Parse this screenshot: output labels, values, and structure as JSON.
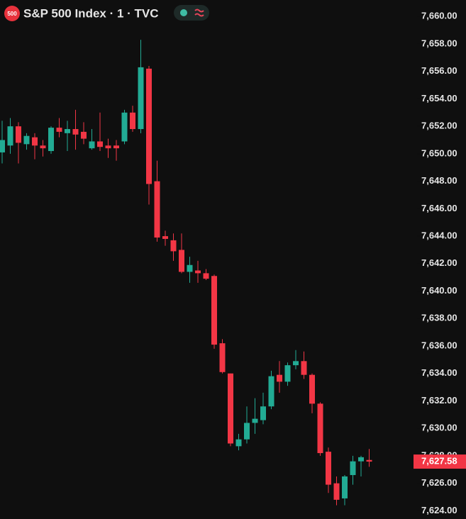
{
  "chart_data": {
    "type": "candlestick",
    "symbol_icon": "500",
    "title": "S&P 500 Index · 1 · TVC",
    "up_color": "#22ab94",
    "down_color": "#f23645",
    "open": [
      7650.1,
      7650.6,
      7652.0,
      7650.7,
      7651.2,
      7650.6,
      7650.2,
      7651.9,
      7651.5,
      7651.8,
      7651.6,
      7650.4,
      7650.9,
      7650.6,
      7650.6,
      7650.9,
      7653.0,
      7651.8,
      7656.2,
      7648.0,
      7644.0,
      7643.7,
      7643.0,
      7641.4,
      7641.5,
      7641.3,
      7641.1,
      7636.2,
      7634.0,
      7628.7,
      7629.2,
      7630.4,
      7630.6,
      7631.6,
      7633.9,
      7633.4,
      7634.6,
      7634.9,
      7633.9,
      7631.8,
      7628.3,
      7626.0,
      7624.9,
      7626.6,
      7627.6,
      7627.7
    ],
    "high": [
      7652.4,
      7652.6,
      7652.3,
      7651.5,
      7651.5,
      7651.0,
      7652.0,
      7652.6,
      7652.4,
      7653.2,
      7652.3,
      7651.8,
      7653.0,
      7651.1,
      7651.0,
      7653.2,
      7653.5,
      7658.3,
      7656.4,
      7649.5,
      7644.4,
      7644.2,
      7644.2,
      7642.5,
      7642.2,
      7641.6,
      7641.2,
      7636.5,
      7634.0,
      7629.6,
      7631.6,
      7632.2,
      7632.6,
      7634.2,
      7634.9,
      7634.8,
      7635.7,
      7635.6,
      7634.0,
      7631.9,
      7628.6,
      7626.5,
      7626.6,
      7628.0,
      7628.0,
      7628.5
    ],
    "low": [
      7649.3,
      7650.0,
      7649.3,
      7650.3,
      7649.6,
      7649.8,
      7650.0,
      7651.2,
      7650.2,
      7650.3,
      7650.7,
      7650.3,
      7650.2,
      7649.7,
      7649.5,
      7650.7,
      7651.6,
      7651.5,
      7646.3,
      7643.6,
      7643.3,
      7642.2,
      7641.3,
      7640.6,
      7640.6,
      7640.8,
      7635.8,
      7634.0,
      7628.7,
      7628.4,
      7628.9,
      7629.6,
      7630.3,
      7631.4,
      7632.6,
      7633.1,
      7634.3,
      7633.6,
      7631.1,
      7628.0,
      7625.3,
      7624.4,
      7624.4,
      7625.9,
      7626.5,
      7627.2
    ],
    "close": [
      7651.0,
      7652.0,
      7650.8,
      7651.3,
      7650.6,
      7650.4,
      7651.9,
      7651.6,
      7651.8,
      7651.4,
      7651.1,
      7650.9,
      7650.5,
      7650.4,
      7650.4,
      7653.0,
      7651.8,
      7656.3,
      7647.8,
      7643.9,
      7643.8,
      7642.9,
      7641.4,
      7641.9,
      7641.3,
      7640.9,
      7636.1,
      7634.1,
      7628.9,
      7629.2,
      7630.4,
      7630.7,
      7631.6,
      7633.8,
      7633.4,
      7634.6,
      7634.9,
      7633.9,
      7631.8,
      7628.2,
      7625.9,
      7624.8,
      7626.5,
      7627.6,
      7627.9,
      7627.58
    ],
    "ylim": [
      7623.4,
      7661.2
    ],
    "yticks": [
      {
        "value": 7624,
        "label": "7,624.00"
      },
      {
        "value": 7626,
        "label": "7,626.00"
      },
      {
        "value": 7628,
        "label": "7,628.00"
      },
      {
        "value": 7630,
        "label": "7,630.00"
      },
      {
        "value": 7632,
        "label": "7,632.00"
      },
      {
        "value": 7634,
        "label": "7,634.00"
      },
      {
        "value": 7636,
        "label": "7,636.00"
      },
      {
        "value": 7638,
        "label": "7,638.00"
      },
      {
        "value": 7640,
        "label": "7,640.00"
      },
      {
        "value": 7642,
        "label": "7,642.00"
      },
      {
        "value": 7644,
        "label": "7,644.00"
      },
      {
        "value": 7646,
        "label": "7,646.00"
      },
      {
        "value": 7648,
        "label": "7,648.00"
      },
      {
        "value": 7650,
        "label": "7,650.00"
      },
      {
        "value": 7652,
        "label": "7,652.00"
      },
      {
        "value": 7654,
        "label": "7,654.00"
      },
      {
        "value": 7656,
        "label": "7,656.00"
      },
      {
        "value": 7658,
        "label": "7,658.00"
      },
      {
        "value": 7660,
        "label": "7,660.00"
      }
    ],
    "last_price": {
      "value": 7627.58,
      "label": "7,627.58"
    }
  }
}
